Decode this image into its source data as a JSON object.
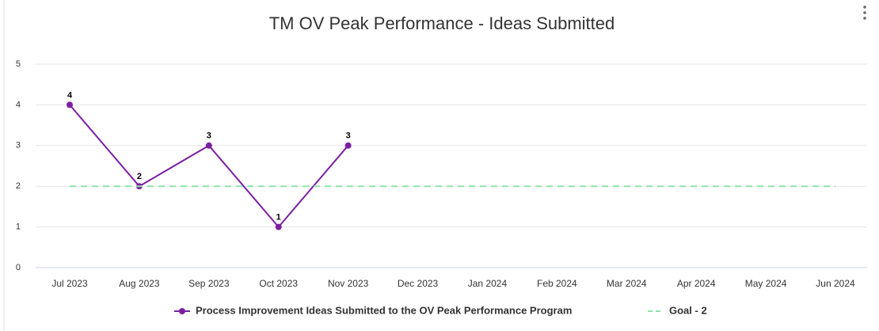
{
  "chart_data": {
    "type": "line",
    "title": "TM OV Peak Performance - Ideas Submitted",
    "categories": [
      "Jul 2023",
      "Aug 2023",
      "Sep 2023",
      "Oct 2023",
      "Nov 2023",
      "Dec 2023",
      "Jan 2024",
      "Feb 2024",
      "Mar 2024",
      "Apr 2024",
      "May 2024",
      "Jun 2024"
    ],
    "series": [
      {
        "name": "Process Improvement Ideas Submitted to the OV Peak Performance Program",
        "color": "#7b1fa2",
        "values": [
          4,
          2,
          3,
          1,
          3,
          null,
          null,
          null,
          null,
          null,
          null,
          null
        ]
      },
      {
        "name": "Goal - 2",
        "color": "#90e4a9",
        "values": [
          2,
          2,
          2,
          2,
          2,
          2,
          2,
          2,
          2,
          2,
          2,
          2
        ]
      }
    ],
    "ylim": [
      0,
      5
    ],
    "yticks": [
      0,
      1,
      2,
      3,
      4,
      5
    ],
    "grid": true
  }
}
